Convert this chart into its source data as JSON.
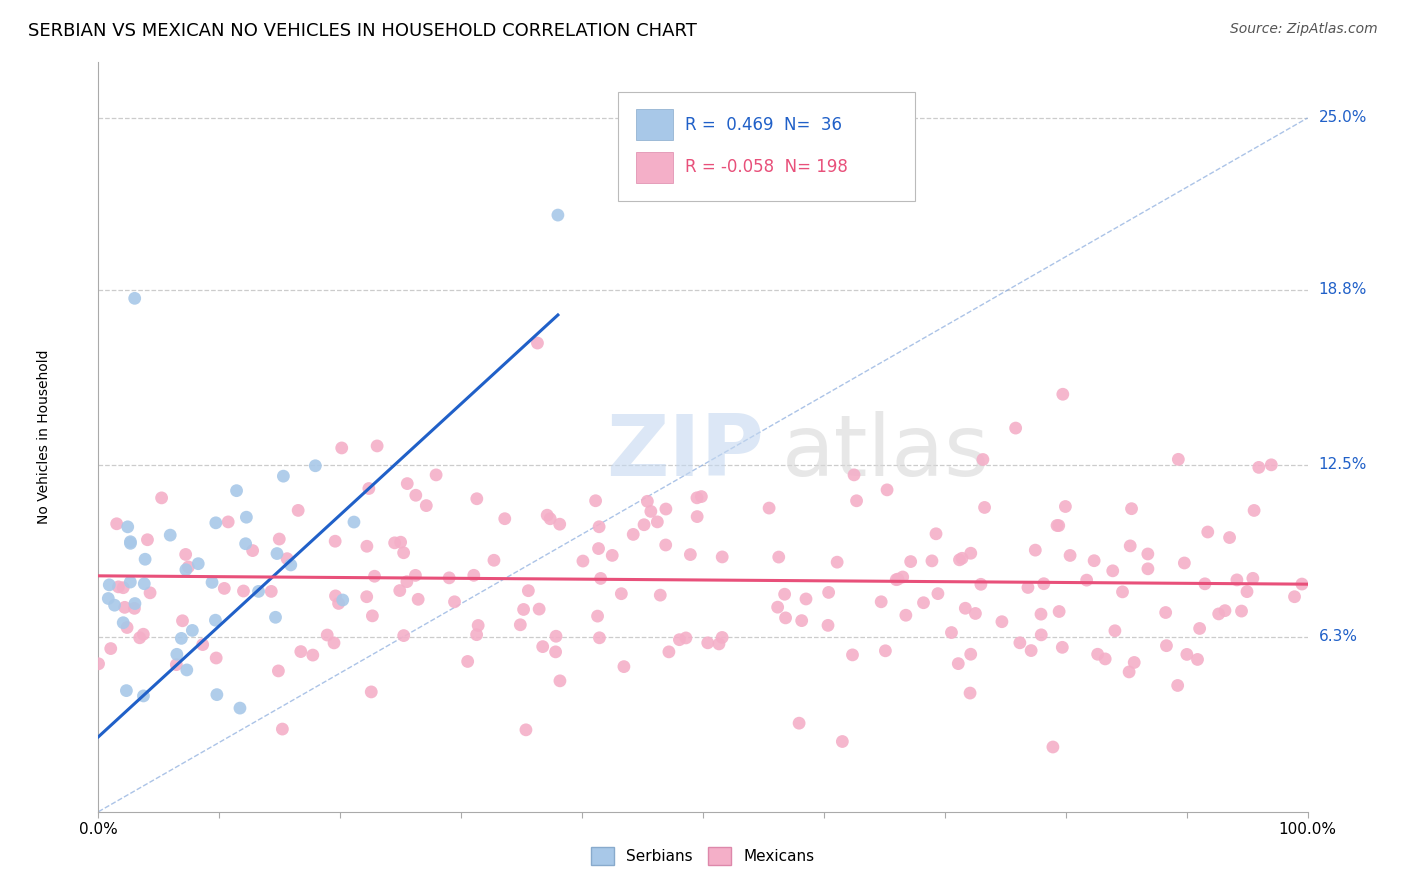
{
  "title": "SERBIAN VS MEXICAN NO VEHICLES IN HOUSEHOLD CORRELATION CHART",
  "source": "Source: ZipAtlas.com",
  "ylabel": "No Vehicles in Household",
  "y_tick_labels": [
    "6.3%",
    "12.5%",
    "18.8%",
    "25.0%"
  ],
  "y_tick_values": [
    0.063,
    0.125,
    0.188,
    0.25
  ],
  "xlim": [
    0.0,
    1.0
  ],
  "ylim": [
    0.0,
    0.27
  ],
  "serbian_R": 0.469,
  "serbian_N": 36,
  "mexican_R": -0.058,
  "mexican_N": 198,
  "serbian_color": "#a8c8e8",
  "mexican_color": "#f4afc8",
  "serbian_line_color": "#2060c8",
  "mexican_line_color": "#e8507a",
  "diagonal_color": "#88aadd",
  "background_color": "#ffffff",
  "watermark_zip": "ZIP",
  "watermark_atlas": "atlas",
  "grid_color": "#cccccc",
  "title_fontsize": 13,
  "axis_label_fontsize": 10,
  "tick_label_fontsize": 11,
  "legend_fontsize": 12,
  "source_fontsize": 10,
  "legend_R_color": "#2060c8",
  "legend_N_color": "#2060c8"
}
